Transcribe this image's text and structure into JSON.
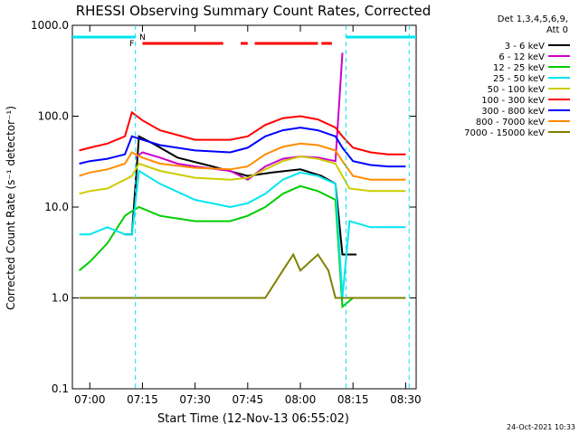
{
  "chart_data": {
    "type": "line",
    "title": "RHESSI Observing Summary Count Rates, Corrected",
    "xlabel": "Start Time (12-Nov-13 06:55:02)",
    "ylabel": "Corrected Count Rate (s⁻¹ detector⁻¹)",
    "yscale": "log",
    "ylim": [
      0.1,
      1000
    ],
    "xlim": [
      "06:55:02",
      "08:33:00"
    ],
    "x_ticks": [
      "07:00",
      "07:15",
      "07:30",
      "07:45",
      "08:00",
      "08:15",
      "08:30"
    ],
    "y_ticks": [
      "0.1",
      "1.0",
      "10.0",
      "100.0",
      "1000.0"
    ],
    "timestamp": "24-Oct-2021 10:33",
    "legend_title": [
      "Det 1,3,4,5,6,9,",
      "Att 0"
    ],
    "legend_position": "right",
    "flag_labels": {
      "F": "F",
      "N": "N"
    },
    "series": [
      {
        "name": "3 - 6 keV",
        "color": "#000000",
        "x": [
          "06:57",
          "07:05",
          "07:10",
          "07:12",
          "07:14",
          "07:18",
          "07:25",
          "07:35",
          "07:45",
          "07:52",
          "08:00",
          "08:06",
          "08:10",
          "08:12",
          "08:14",
          "08:16",
          "08:18"
        ],
        "y": [
          null,
          null,
          5,
          5,
          60,
          50,
          35,
          28,
          22,
          24,
          26,
          22,
          18,
          3,
          3,
          3,
          null
        ]
      },
      {
        "name": "6 - 12 keV",
        "color": "#cc00cc",
        "x": [
          "07:13",
          "07:15",
          "07:20",
          "07:25",
          "07:30",
          "07:40",
          "07:45",
          "07:50",
          "07:55",
          "08:00",
          "08:05",
          "08:10",
          "08:12"
        ],
        "y": [
          35,
          40,
          35,
          30,
          28,
          25,
          20,
          28,
          34,
          36,
          35,
          32,
          500
        ]
      },
      {
        "name": "12 - 25 keV",
        "color": "#00cc00",
        "x": [
          "06:57",
          "07:00",
          "07:05",
          "07:10",
          "07:12",
          "07:14",
          "07:20",
          "07:30",
          "07:40",
          "07:45",
          "07:50",
          "07:55",
          "08:00",
          "08:05",
          "08:10",
          "08:12",
          "08:15",
          "08:20",
          "08:25",
          "08:30"
        ],
        "y": [
          2,
          2.5,
          4,
          8,
          9,
          10,
          8,
          7,
          7,
          8,
          10,
          14,
          17,
          15,
          12,
          0.8,
          1,
          1,
          1,
          1
        ]
      },
      {
        "name": "25 - 50 keV",
        "color": "#00e5ee",
        "x": [
          "06:57",
          "07:00",
          "07:05",
          "07:10",
          "07:12",
          "07:14",
          "07:20",
          "07:30",
          "07:40",
          "07:45",
          "07:50",
          "07:55",
          "08:00",
          "08:05",
          "08:10",
          "08:12",
          "08:14",
          "08:20",
          "08:25",
          "08:30"
        ],
        "y": [
          5,
          5,
          6,
          5,
          5,
          25,
          18,
          12,
          10,
          11,
          14,
          20,
          24,
          22,
          18,
          1,
          7,
          6,
          6,
          6
        ]
      },
      {
        "name": "50 - 100 keV",
        "color": "#cccc00",
        "x": [
          "06:57",
          "07:00",
          "07:05",
          "07:10",
          "07:12",
          "07:14",
          "07:20",
          "07:30",
          "07:40",
          "07:45",
          "07:50",
          "07:55",
          "08:00",
          "08:05",
          "08:10",
          "08:12",
          "08:14",
          "08:20",
          "08:25",
          "08:30"
        ],
        "y": [
          14,
          15,
          16,
          20,
          22,
          30,
          25,
          21,
          20,
          21,
          26,
          32,
          36,
          34,
          30,
          22,
          16,
          15,
          15,
          15
        ]
      },
      {
        "name": "100 - 300 keV",
        "color": "#ff0000",
        "x": [
          "06:57",
          "07:00",
          "07:05",
          "07:10",
          "07:12",
          "07:15",
          "07:20",
          "07:30",
          "07:40",
          "07:45",
          "07:50",
          "07:55",
          "08:00",
          "08:05",
          "08:10",
          "08:12",
          "08:15",
          "08:20",
          "08:25",
          "08:30"
        ],
        "y": [
          42,
          45,
          50,
          60,
          110,
          90,
          70,
          55,
          55,
          60,
          80,
          95,
          100,
          92,
          75,
          60,
          45,
          40,
          38,
          38
        ]
      },
      {
        "name": "300 - 800 keV",
        "color": "#0000ff",
        "x": [
          "06:57",
          "07:00",
          "07:05",
          "07:10",
          "07:12",
          "07:15",
          "07:20",
          "07:30",
          "07:40",
          "07:45",
          "07:50",
          "07:55",
          "08:00",
          "08:05",
          "08:10",
          "08:12",
          "08:15",
          "08:20",
          "08:25",
          "08:30"
        ],
        "y": [
          30,
          32,
          34,
          38,
          60,
          55,
          48,
          42,
          40,
          45,
          60,
          70,
          75,
          70,
          60,
          45,
          32,
          29,
          28,
          28
        ]
      },
      {
        "name": "800 - 7000 keV",
        "color": "#ff8c00",
        "x": [
          "06:57",
          "07:00",
          "07:05",
          "07:10",
          "07:12",
          "07:15",
          "07:20",
          "07:30",
          "07:40",
          "07:45",
          "07:50",
          "07:55",
          "08:00",
          "08:05",
          "08:10",
          "08:12",
          "08:15",
          "08:20",
          "08:25",
          "08:30"
        ],
        "y": [
          22,
          24,
          26,
          30,
          40,
          35,
          30,
          27,
          26,
          28,
          38,
          46,
          50,
          48,
          42,
          32,
          22,
          20,
          20,
          20
        ]
      },
      {
        "name": "7000 - 15000 keV",
        "color": "#808000",
        "x": [
          "06:57",
          "07:30",
          "07:45",
          "07:50",
          "07:55",
          "07:58",
          "08:00",
          "08:05",
          "08:08",
          "08:10",
          "08:12",
          "08:30"
        ],
        "y": [
          1,
          1,
          1,
          1,
          2,
          3,
          2,
          3,
          2,
          1,
          1,
          1
        ]
      }
    ]
  }
}
